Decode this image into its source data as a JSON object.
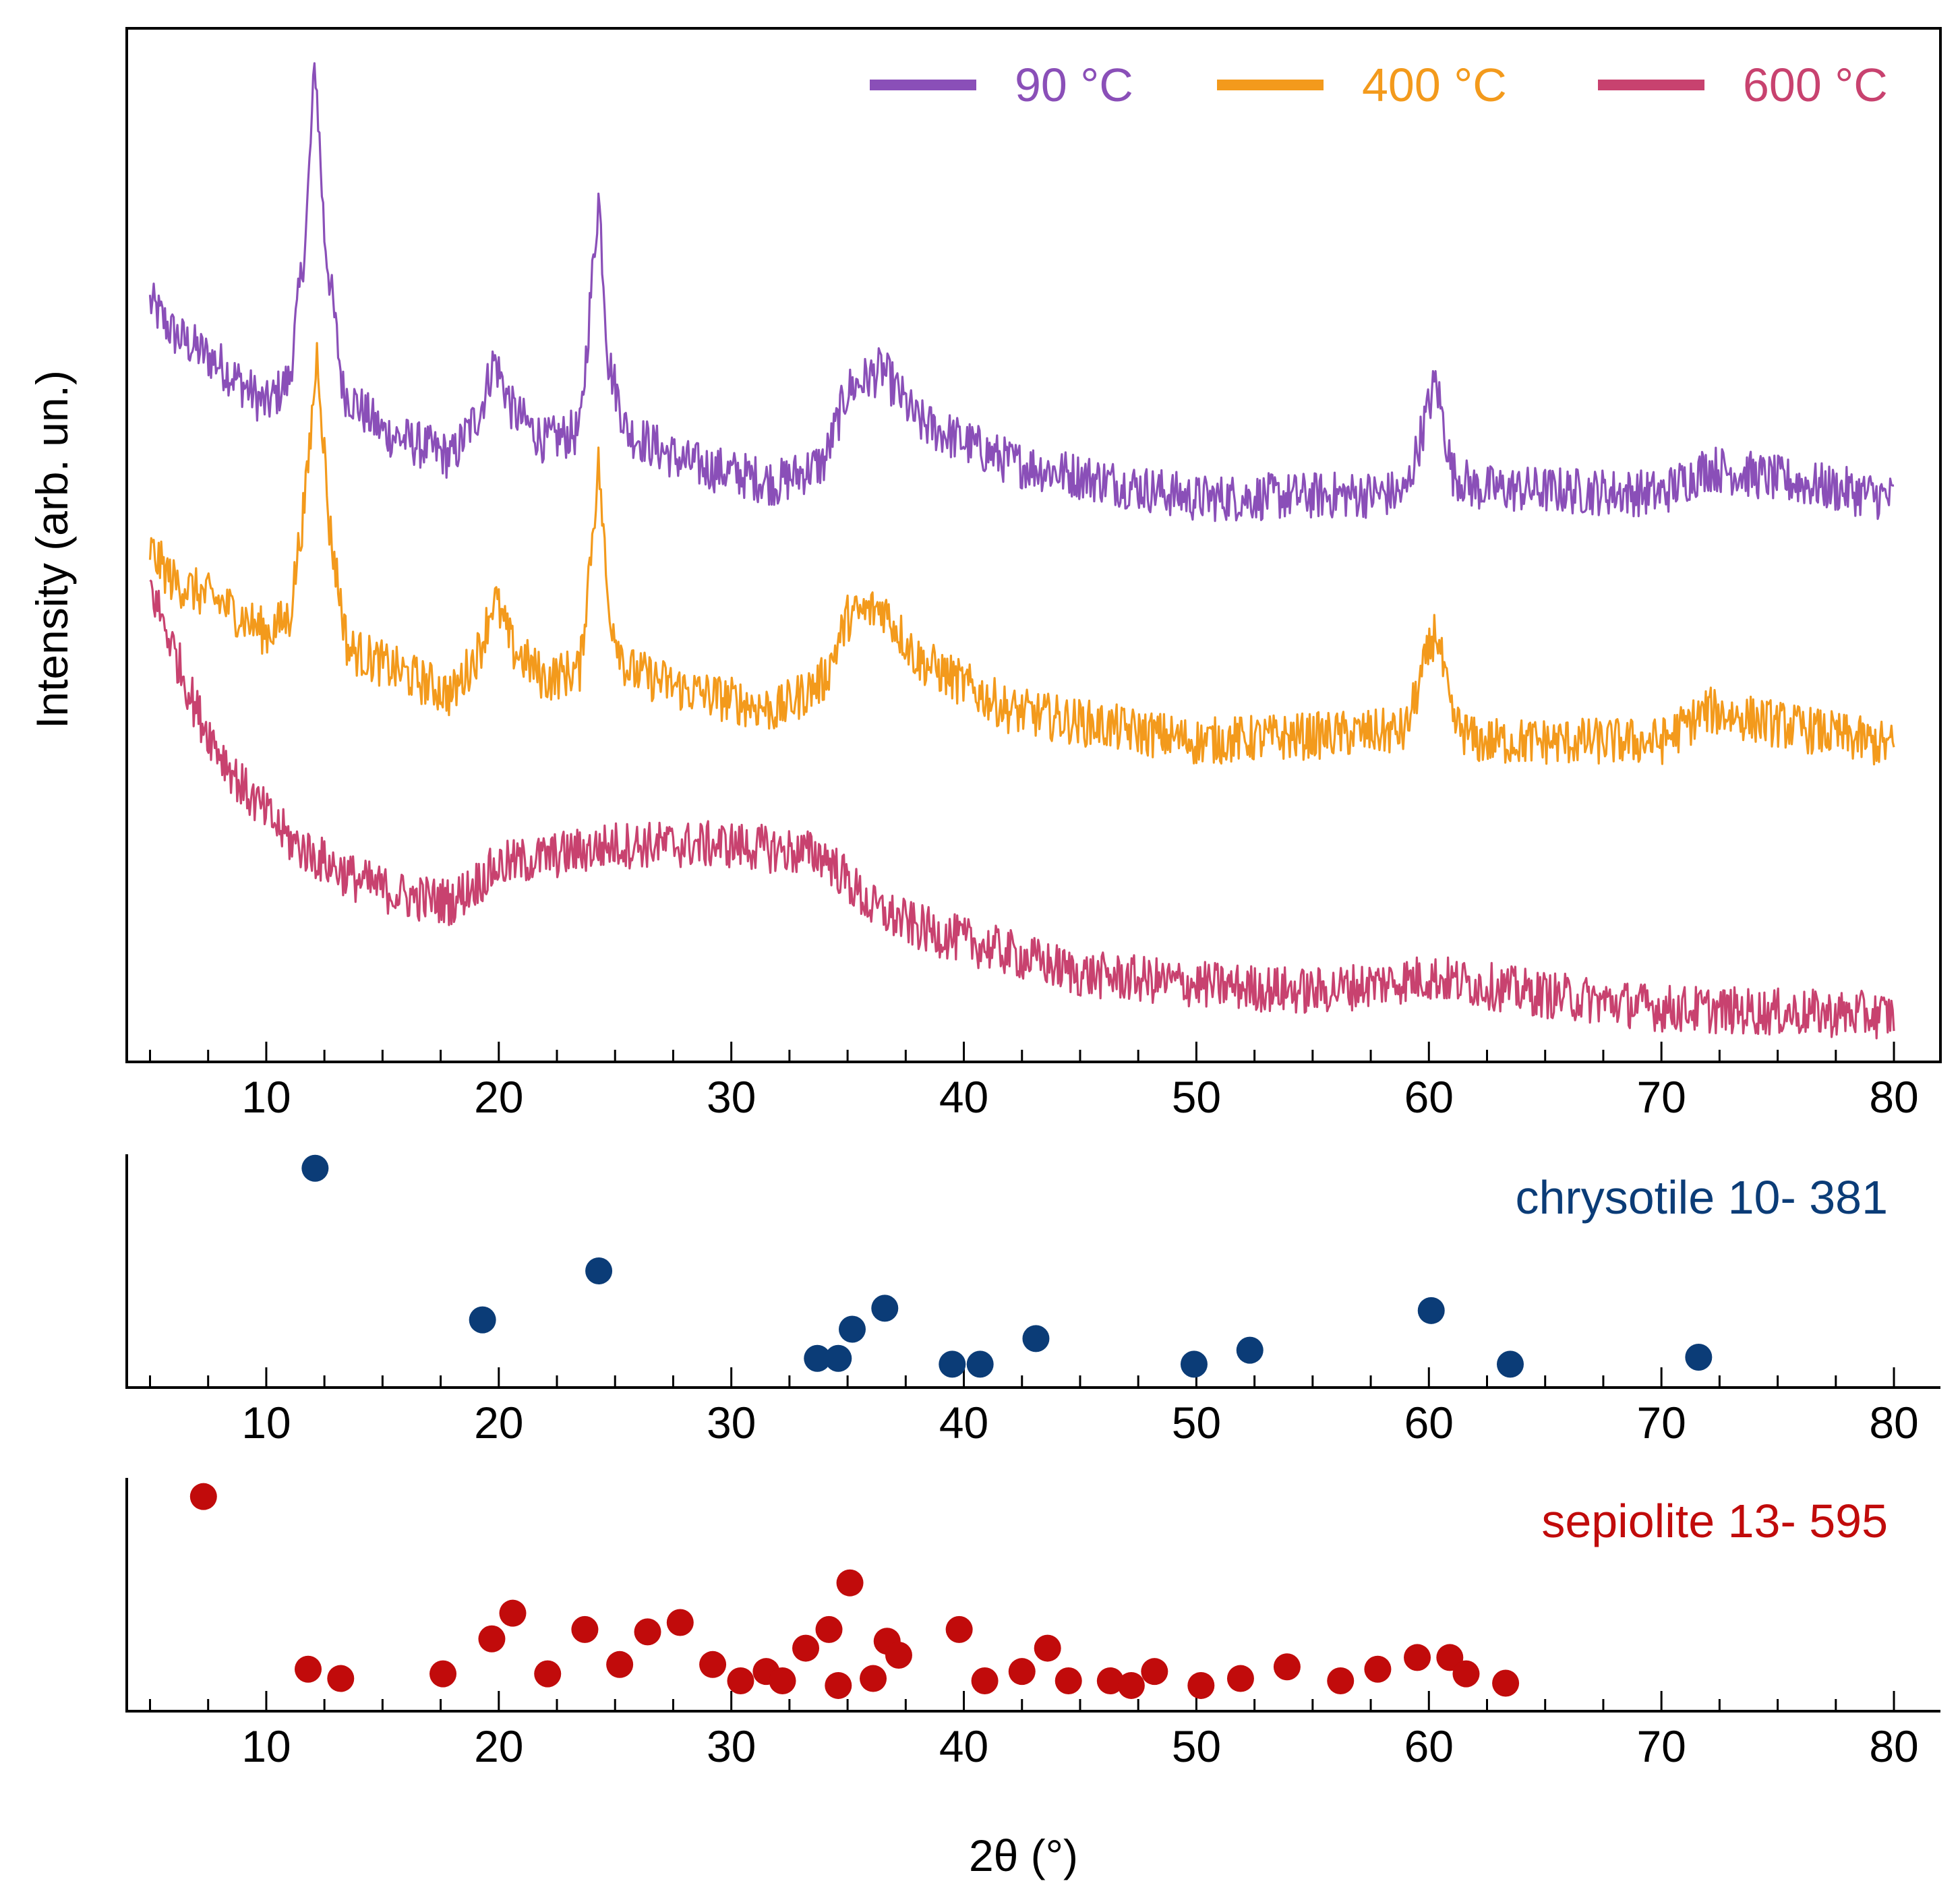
{
  "chart_data": [
    {
      "id": "main",
      "type": "line",
      "ylabel": "Intensity (arb. un.)",
      "xlim": [
        4,
        82
      ],
      "ylim": [
        0,
        100
      ],
      "xticks": [
        10,
        20,
        30,
        40,
        50,
        60,
        70,
        80
      ],
      "xtick_labels": [
        "10",
        "20",
        "30",
        "40",
        "50",
        "60",
        "70",
        "80"
      ],
      "legend_position": "top-right",
      "noise_amplitude": 2.3,
      "series": [
        {
          "name": "90 °C",
          "color": "#8a4fb8",
          "x": [
            5,
            6,
            8,
            10,
            11,
            11.7,
            12.1,
            12.5,
            13.3,
            15,
            18,
            19.2,
            19.8,
            20.6,
            22,
            23.5,
            24.3,
            24.7,
            25.5,
            28,
            32,
            34,
            35,
            36.5,
            38,
            42,
            50,
            59,
            60.3,
            61,
            62,
            70,
            72,
            80
          ],
          "y": [
            73.5,
            70.5,
            67.5,
            63.5,
            66,
            80,
            97,
            80,
            65,
            61,
            58.5,
            63,
            68,
            63,
            60,
            61,
            84,
            68,
            61,
            58,
            56,
            58,
            65,
            67,
            62,
            58,
            54.5,
            55,
            66,
            57,
            55.5,
            55,
            57.5,
            54.5
          ]
        },
        {
          "name": "400 °C",
          "color": "#f39a1c",
          "x": [
            5,
            6,
            8,
            10,
            11,
            11.7,
            12.2,
            12.7,
            13.5,
            15,
            18,
            19.2,
            19.8,
            20.6,
            22,
            23.5,
            24.3,
            24.7,
            25.5,
            28,
            32,
            34,
            35,
            36.5,
            38,
            42,
            50,
            59,
            60.3,
            61,
            62,
            70,
            72,
            80
          ],
          "y": [
            49.5,
            46.5,
            44.5,
            41.5,
            43,
            55,
            69,
            52,
            40,
            38.5,
            35.5,
            40,
            45,
            40,
            37,
            38,
            58,
            44,
            38,
            36,
            34,
            37,
            43,
            44,
            39,
            34,
            31,
            32,
            42,
            33,
            31,
            31,
            34,
            30.5
          ]
        },
        {
          "name": "600 °C",
          "color": "#c8426f",
          "x": [
            5,
            6,
            7,
            8,
            9,
            10,
            11,
            12,
            14,
            16,
            18,
            20,
            25,
            30,
            34,
            36,
            38,
            42,
            45,
            50,
            55,
            60,
            65,
            70,
            75,
            80
          ],
          "y": [
            46,
            40,
            34,
            30,
            26.5,
            24,
            21.5,
            20,
            17.5,
            16,
            15.5,
            19,
            21,
            21,
            20,
            15,
            13,
            10.5,
            8.5,
            7.5,
            6.8,
            8.2,
            6.5,
            5.2,
            4.8,
            4.5
          ]
        }
      ]
    },
    {
      "id": "chrysotile",
      "type": "scatter",
      "name": "chrysotile 10- 381",
      "color": "#0b3c77",
      "xlim": [
        4,
        82
      ],
      "ylim": [
        0,
        100
      ],
      "xticks": [
        10,
        20,
        30,
        40,
        50,
        60,
        70,
        80
      ],
      "xtick_labels": [
        "10",
        "20",
        "30",
        "40",
        "50",
        "60",
        "70",
        "80"
      ],
      "x": [
        12.1,
        19.3,
        24.3,
        33.7,
        34.6,
        35.2,
        36.6,
        39.5,
        40.7,
        43.1,
        49.9,
        52.3,
        60.1,
        63.5,
        71.6
      ],
      "y": [
        94,
        29,
        50,
        12.5,
        12.5,
        25,
        34,
        10,
        10,
        21,
        10,
        16,
        33,
        10,
        13
      ]
    },
    {
      "id": "sepiolite",
      "type": "scatter",
      "name": "sepiolite 13- 595",
      "color": "#c10b0b",
      "xlim": [
        4,
        82
      ],
      "ylim": [
        0,
        100
      ],
      "xticks": [
        10,
        20,
        30,
        40,
        50,
        60,
        70,
        80
      ],
      "xtick_labels": [
        "10",
        "20",
        "30",
        "40",
        "50",
        "60",
        "70",
        "80"
      ],
      "xlabel": "2θ (°)",
      "x": [
        7.3,
        11.8,
        13.2,
        17.6,
        19.7,
        20.6,
        22.1,
        23.7,
        25.2,
        26.4,
        27.8,
        29.2,
        30.4,
        31.5,
        32.2,
        33.2,
        34.2,
        34.6,
        35.1,
        36.1,
        36.7,
        37.2,
        39.8,
        40.9,
        42.5,
        43.6,
        44.5,
        46.3,
        47.2,
        48.2,
        50.2,
        51.9,
        53.9,
        56.2,
        57.8,
        59.5,
        60.9,
        61.6,
        63.3
      ],
      "y": [
        92,
        18,
        14,
        16,
        31,
        42,
        16,
        35,
        20,
        34,
        38,
        20,
        13,
        17,
        13,
        27,
        35,
        11,
        55,
        14,
        30,
        24,
        35,
        13,
        17,
        27,
        13,
        13,
        11,
        17,
        11,
        14,
        19,
        13,
        18,
        23,
        23,
        16,
        12
      ]
    }
  ]
}
